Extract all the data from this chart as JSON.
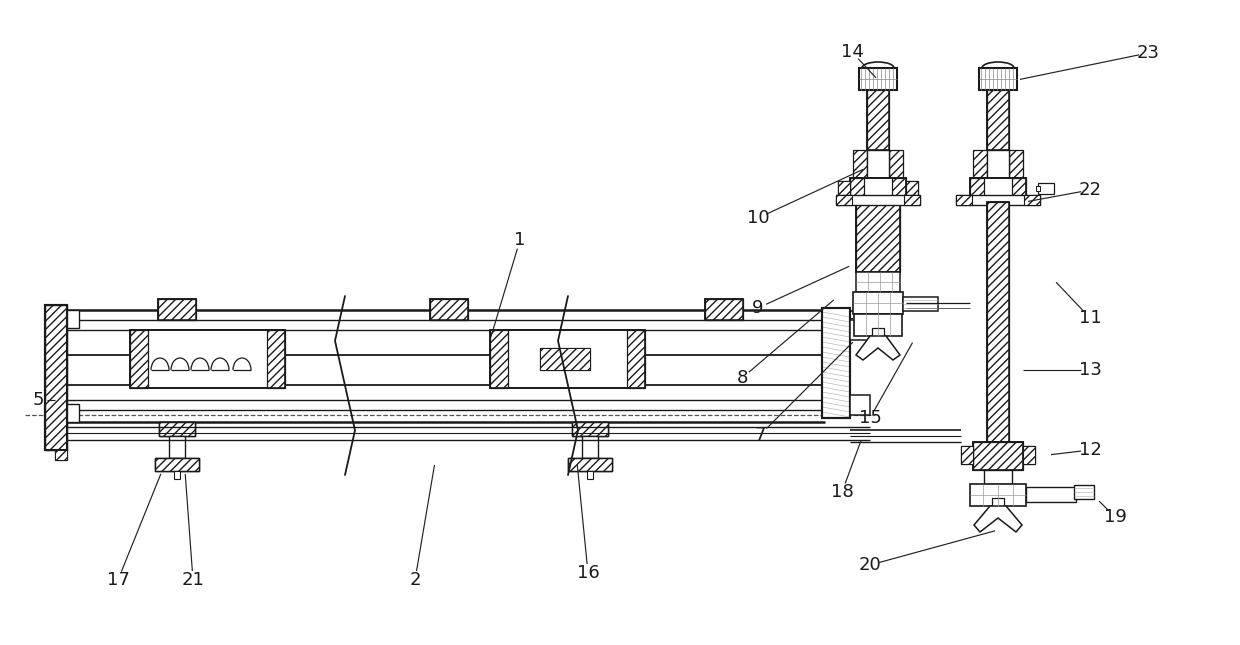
{
  "bg_color": "#ffffff",
  "lc": "#1a1a1a",
  "figsize": [
    12.4,
    6.45
  ],
  "dpi": 100
}
